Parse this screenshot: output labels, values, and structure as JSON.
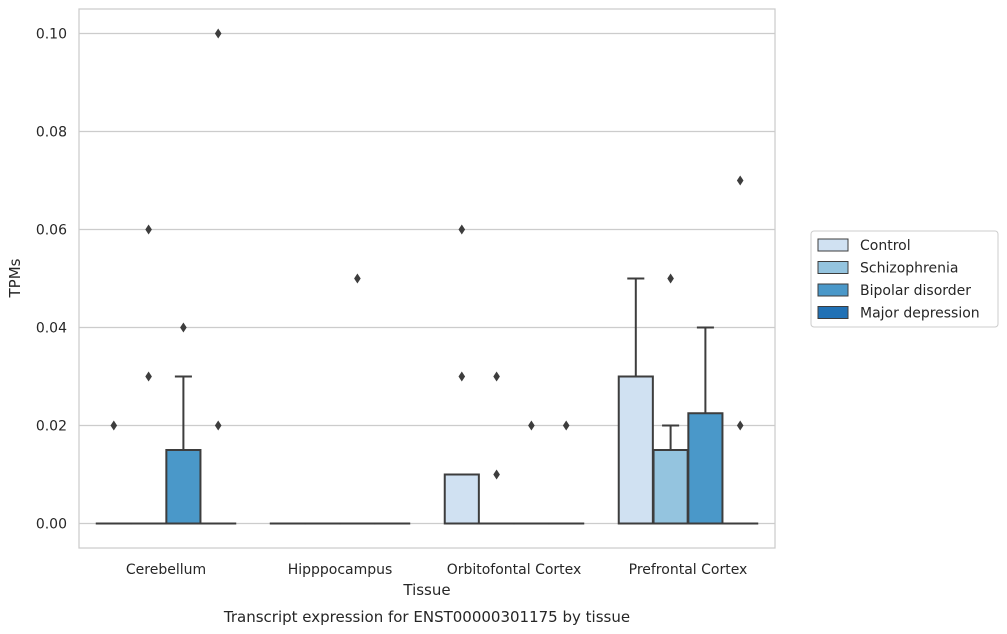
{
  "chart_data": {
    "type": "box",
    "title": "Transcript expression for ENST00000301175 by tissue",
    "xlabel": "Tissue",
    "ylabel": "TPMs",
    "ylim": [
      -0.005,
      0.105
    ],
    "yticks": [
      "0.00",
      "0.02",
      "0.04",
      "0.06",
      "0.08",
      "0.10"
    ],
    "grid": "horizontal",
    "legend_position": "right",
    "categories": [
      "Cerebellum",
      "Hipppocampus",
      "Orbitofontal Cortex",
      "Prefrontal Cortex"
    ],
    "series": [
      {
        "name": "Control",
        "color": "#d0e1f2",
        "boxes": [
          {
            "q1": 0.0,
            "median": 0.0,
            "q3": 0.0,
            "whisker_low": 0.0,
            "whisker_high": 0.0,
            "outliers": [
              0.02
            ]
          },
          {
            "q1": 0.0,
            "median": 0.0,
            "q3": 0.0,
            "whisker_low": 0.0,
            "whisker_high": 0.0,
            "outliers": []
          },
          {
            "q1": 0.0,
            "median": 0.0,
            "q3": 0.01,
            "whisker_low": 0.0,
            "whisker_high": 0.01,
            "outliers": [
              0.03,
              0.06
            ]
          },
          {
            "q1": 0.0,
            "median": 0.0,
            "q3": 0.03,
            "whisker_low": 0.0,
            "whisker_high": 0.05,
            "outliers": []
          }
        ]
      },
      {
        "name": "Schizophrenia",
        "color": "#94c4df",
        "boxes": [
          {
            "q1": 0.0,
            "median": 0.0,
            "q3": 0.0,
            "whisker_low": 0.0,
            "whisker_high": 0.0,
            "outliers": [
              0.03,
              0.06
            ]
          },
          {
            "q1": 0.0,
            "median": 0.0,
            "q3": 0.0,
            "whisker_low": 0.0,
            "whisker_high": 0.0,
            "outliers": []
          },
          {
            "q1": 0.0,
            "median": 0.0,
            "q3": 0.0,
            "whisker_low": 0.0,
            "whisker_high": 0.0,
            "outliers": [
              0.01,
              0.03
            ]
          },
          {
            "q1": 0.0,
            "median": 0.0,
            "q3": 0.015,
            "whisker_low": 0.0,
            "whisker_high": 0.02,
            "outliers": [
              0.05
            ]
          }
        ]
      },
      {
        "name": "Bipolar disorder",
        "color": "#4a98c9",
        "boxes": [
          {
            "q1": 0.0,
            "median": 0.0,
            "q3": 0.015,
            "whisker_low": 0.0,
            "whisker_high": 0.03,
            "outliers": [
              0.04
            ]
          },
          {
            "q1": 0.0,
            "median": 0.0,
            "q3": 0.0,
            "whisker_low": 0.0,
            "whisker_high": 0.0,
            "outliers": [
              0.05
            ]
          },
          {
            "q1": 0.0,
            "median": 0.0,
            "q3": 0.0,
            "whisker_low": 0.0,
            "whisker_high": 0.0,
            "outliers": [
              0.02
            ]
          },
          {
            "q1": 0.0,
            "median": 0.0,
            "q3": 0.0225,
            "whisker_low": 0.0,
            "whisker_high": 0.04,
            "outliers": []
          }
        ]
      },
      {
        "name": "Major depression",
        "color": "#2171b5",
        "boxes": [
          {
            "q1": 0.0,
            "median": 0.0,
            "q3": 0.0,
            "whisker_low": 0.0,
            "whisker_high": 0.0,
            "outliers": [
              0.02,
              0.1
            ]
          },
          {
            "q1": 0.0,
            "median": 0.0,
            "q3": 0.0,
            "whisker_low": 0.0,
            "whisker_high": 0.0,
            "outliers": []
          },
          {
            "q1": 0.0,
            "median": 0.0,
            "q3": 0.0,
            "whisker_low": 0.0,
            "whisker_high": 0.0,
            "outliers": [
              0.02
            ]
          },
          {
            "q1": 0.0,
            "median": 0.0,
            "q3": 0.0,
            "whisker_low": 0.0,
            "whisker_high": 0.0,
            "outliers": [
              0.02,
              0.07
            ]
          }
        ]
      }
    ]
  }
}
